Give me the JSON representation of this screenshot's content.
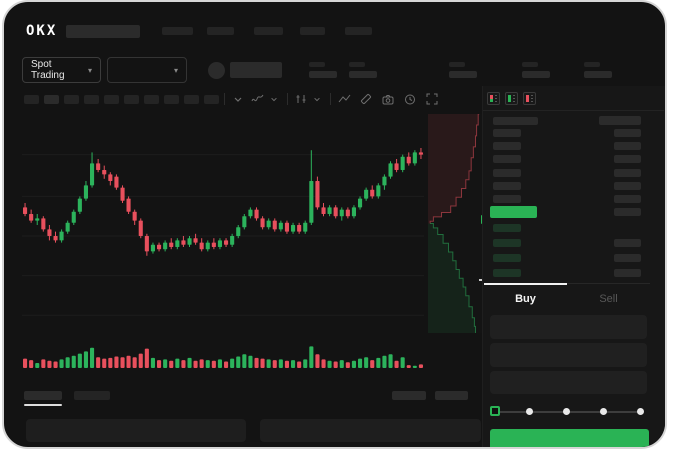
{
  "brand": {
    "name": "OKX"
  },
  "header": {
    "market_selector": {
      "label": "Spot Trading"
    }
  },
  "order_panel": {
    "tabs": {
      "buy": "Buy",
      "sell": "Sell"
    }
  },
  "colors": {
    "accent_green": "#2ab355",
    "candle_up": "#2cb35c",
    "candle_down": "#e8505d",
    "background": "#131313",
    "placeholder": "#242424"
  },
  "chart_data": {
    "type": "candlestick",
    "subcharts": [
      "volume",
      "depth"
    ],
    "title": "",
    "axis_labels_visible": false,
    "value_scale": "normalized 0-100 (no axis labels shown in UI)",
    "gridline_levels": [
      82,
      63,
      45,
      27,
      9
    ],
    "candles_ohlc": [
      [
        58,
        60,
        54,
        55
      ],
      [
        55,
        57,
        51,
        52
      ],
      [
        52,
        55,
        50,
        53
      ],
      [
        53,
        54,
        47,
        48
      ],
      [
        48,
        50,
        43,
        45
      ],
      [
        45,
        47,
        42,
        43
      ],
      [
        43,
        48,
        42,
        47
      ],
      [
        47,
        52,
        46,
        51
      ],
      [
        51,
        57,
        50,
        56
      ],
      [
        56,
        63,
        55,
        62
      ],
      [
        62,
        70,
        61,
        68
      ],
      [
        68,
        83,
        67,
        78
      ],
      [
        78,
        80,
        74,
        75
      ],
      [
        75,
        77,
        71,
        73
      ],
      [
        73,
        74,
        68,
        70
      ],
      [
        72,
        73,
        66,
        67
      ],
      [
        67,
        68,
        60,
        61
      ],
      [
        62,
        63,
        55,
        56
      ],
      [
        56,
        57,
        50,
        52
      ],
      [
        52,
        53,
        44,
        45
      ],
      [
        45,
        46,
        36,
        38
      ],
      [
        38,
        42,
        37,
        41
      ],
      [
        41,
        42,
        38,
        39
      ],
      [
        39,
        43,
        38,
        42
      ],
      [
        42,
        44,
        39,
        40
      ],
      [
        40,
        44,
        39,
        43
      ],
      [
        43,
        45,
        40,
        41
      ],
      [
        41,
        45,
        40,
        44
      ],
      [
        44,
        46,
        41,
        42
      ],
      [
        42,
        44,
        38,
        39
      ],
      [
        39,
        43,
        38,
        42
      ],
      [
        42,
        44,
        39,
        40
      ],
      [
        40,
        44,
        39,
        43
      ],
      [
        43,
        44,
        40,
        41
      ],
      [
        41,
        46,
        40,
        45
      ],
      [
        45,
        50,
        44,
        49
      ],
      [
        49,
        55,
        48,
        54
      ],
      [
        54,
        58,
        53,
        57
      ],
      [
        57,
        58,
        52,
        53
      ],
      [
        53,
        54,
        48,
        49
      ],
      [
        49,
        53,
        48,
        52
      ],
      [
        52,
        53,
        47,
        48
      ],
      [
        48,
        52,
        47,
        51
      ],
      [
        51,
        52,
        46,
        47
      ],
      [
        47,
        51,
        46,
        50
      ],
      [
        50,
        51,
        46,
        47
      ],
      [
        47,
        52,
        46,
        51
      ],
      [
        51,
        84,
        50,
        70
      ],
      [
        70,
        72,
        57,
        58
      ],
      [
        58,
        60,
        54,
        55
      ],
      [
        55,
        59,
        54,
        58
      ],
      [
        58,
        59,
        53,
        54
      ],
      [
        54,
        58,
        52,
        57
      ],
      [
        57,
        58,
        53,
        54
      ],
      [
        54,
        59,
        53,
        58
      ],
      [
        58,
        63,
        57,
        62
      ],
      [
        62,
        67,
        61,
        66
      ],
      [
        66,
        68,
        62,
        63
      ],
      [
        63,
        69,
        62,
        68
      ],
      [
        68,
        73,
        66,
        72
      ],
      [
        72,
        79,
        71,
        78
      ],
      [
        78,
        80,
        74,
        75
      ],
      [
        75,
        82,
        74,
        81
      ],
      [
        81,
        83,
        77,
        78
      ],
      [
        78,
        84,
        77,
        83
      ],
      [
        83,
        85,
        80,
        82
      ]
    ],
    "volumes": [
      26,
      22,
      14,
      24,
      20,
      18,
      24,
      30,
      34,
      40,
      46,
      56,
      30,
      26,
      28,
      32,
      30,
      34,
      30,
      40,
      54,
      28,
      22,
      24,
      20,
      26,
      22,
      28,
      20,
      24,
      22,
      20,
      24,
      18,
      26,
      32,
      38,
      34,
      28,
      26,
      24,
      22,
      24,
      20,
      22,
      18,
      24,
      60,
      38,
      24,
      20,
      18,
      22,
      16,
      20,
      26,
      30,
      22,
      28,
      34,
      38,
      20,
      30,
      8,
      6,
      10
    ],
    "depth": {
      "orientation": "vertical",
      "asks_curve": [
        [
          0.95,
          0
        ],
        [
          0.93,
          0.05
        ],
        [
          0.9,
          0.1
        ],
        [
          0.88,
          0.15
        ],
        [
          0.84,
          0.2
        ],
        [
          0.8,
          0.26
        ],
        [
          0.76,
          0.3
        ],
        [
          0.7,
          0.34
        ],
        [
          0.62,
          0.38
        ],
        [
          0.52,
          0.42
        ],
        [
          0.42,
          0.45
        ],
        [
          0.25,
          0.47
        ],
        [
          0.1,
          0.49
        ],
        [
          0.04,
          0.5
        ]
      ],
      "bids_curve": [
        [
          0.04,
          0.5
        ],
        [
          0.1,
          0.52
        ],
        [
          0.18,
          0.55
        ],
        [
          0.28,
          0.59
        ],
        [
          0.38,
          0.63
        ],
        [
          0.46,
          0.67
        ],
        [
          0.52,
          0.71
        ],
        [
          0.58,
          0.75
        ],
        [
          0.65,
          0.79
        ],
        [
          0.7,
          0.83
        ],
        [
          0.76,
          0.88
        ],
        [
          0.82,
          0.93
        ],
        [
          0.86,
          0.97
        ],
        [
          0.88,
          1.0
        ]
      ]
    },
    "colors": {
      "up": "#2cb35c",
      "down": "#e8505d",
      "depth_ask_fill": "rgba(232,80,93,0.10)",
      "depth_bid_fill": "rgba(44,179,92,0.10)",
      "depth_ask_line": "rgba(232,80,93,0.55)",
      "depth_bid_line": "rgba(44,179,92,0.55)"
    }
  }
}
